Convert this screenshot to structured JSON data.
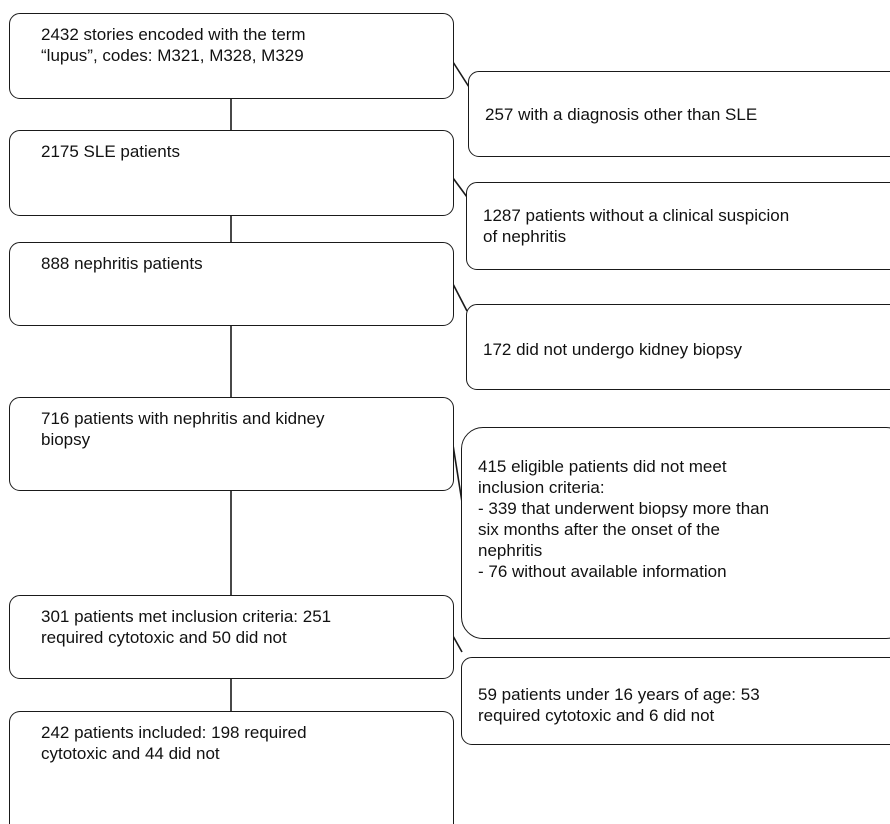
{
  "flow": {
    "main": [
      "2432 stories encoded with the term\n“lupus”, codes: M321, M328, M329",
      "2175 SLE patients",
      "888 nephritis patients",
      "716 patients with nephritis and kidney\nbiopsy",
      "301 patients met inclusion criteria: 251\nrequired cytotoxic and 50 did not",
      "242 patients included: 198 required\ncytotoxic and 44 did not"
    ],
    "excluded": [
      "257 with a diagnosis other than SLE",
      "1287 patients without a clinical suspicion\nof nephritis",
      "172 did not undergo kidney biopsy",
      "415 eligible patients did not meet\ninclusion criteria:\n- 339 that underwent biopsy more than\nsix months after the onset of the\nnephritis\n- 76 without available information",
      "59 patients under 16 years of age: 53\nrequired cytotoxic and 6 did not"
    ]
  }
}
